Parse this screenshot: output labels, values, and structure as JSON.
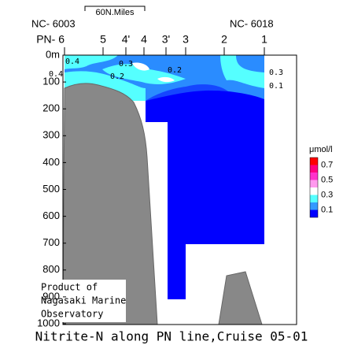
{
  "chart_data": {
    "type": "section",
    "title": "Nitrite-N along PN line,Cruise 05-01",
    "stations": [
      "PN- 6",
      "5",
      "4'",
      "4",
      "3'",
      "3",
      "2",
      "1"
    ],
    "end_labels": [
      "NC- 6003",
      "NC- 6018"
    ],
    "scale_label": "60N.Miles",
    "ylim": [
      0,
      1000
    ],
    "yticks": [
      {
        "value": 0,
        "label": "0m"
      },
      100,
      200,
      300,
      400,
      500,
      600,
      700,
      800,
      900,
      1000
    ],
    "colorbar": {
      "unit": "μmol/l",
      "clim": [
        0,
        0.8
      ],
      "ticks": [
        0.7,
        0.5,
        0.3,
        0.1
      ]
    },
    "contour_labels": [
      0.4,
      0.4,
      0.3,
      0.2,
      0.2,
      0.3,
      0.1
    ],
    "note": [
      "Product of",
      "Nagasaki Marine",
      "Observatory"
    ]
  }
}
